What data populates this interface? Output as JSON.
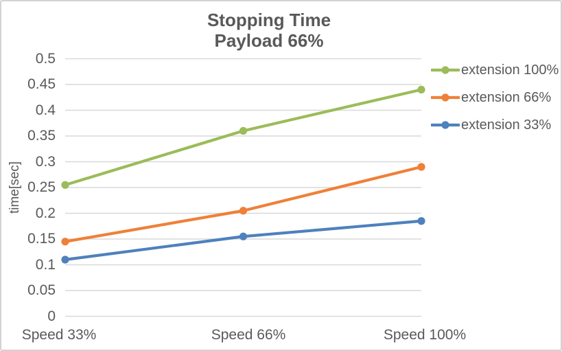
{
  "chart_data": {
    "type": "line",
    "title": "Stopping Time",
    "subtitle": "Payload 66%",
    "xlabel": "",
    "ylabel": "time[sec]",
    "categories": [
      "Speed 33%",
      "Speed 66%",
      "Speed 100%"
    ],
    "series": [
      {
        "name": "extension 100%",
        "color": "#9cbb59",
        "values": [
          0.255,
          0.36,
          0.44
        ]
      },
      {
        "name": "extension 66%",
        "color": "#ef8038",
        "values": [
          0.145,
          0.205,
          0.29
        ]
      },
      {
        "name": "extension 33%",
        "color": "#4e81bd",
        "values": [
          0.11,
          0.155,
          0.185
        ]
      }
    ],
    "ylim": [
      0,
      0.5
    ],
    "ytick_step": 0.05,
    "ytick_labels": [
      "0",
      "0.05",
      "0.1",
      "0.15",
      "0.2",
      "0.25",
      "0.3",
      "0.35",
      "0.4",
      "0.45",
      "0.5"
    ],
    "grid": true,
    "legend_position": "right",
    "colors": {
      "text": "#595959",
      "gridline": "#d9d9d9",
      "background": "#ffffff",
      "border": "#d2d2d2"
    }
  }
}
